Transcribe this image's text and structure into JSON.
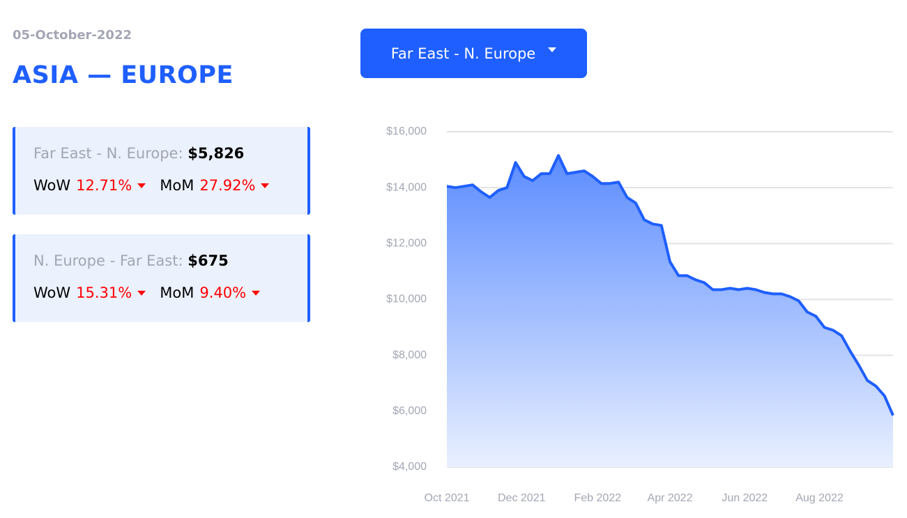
{
  "header": {
    "date": "05-October-2022",
    "title": "ASIA — EUROPE"
  },
  "dropdown": {
    "label": "Far East - N. Europe"
  },
  "cards": [
    {
      "route": "Far East - N. Europe:",
      "price": "$5,826",
      "metrics": [
        {
          "name": "WoW",
          "change": "12.71%"
        },
        {
          "name": "MoM",
          "change": "27.92%"
        }
      ]
    },
    {
      "route": "N. Europe - Far East:",
      "price": "$675",
      "metrics": [
        {
          "name": "WoW",
          "change": "15.31%"
        },
        {
          "name": "MoM",
          "change": "9.40%"
        }
      ]
    }
  ],
  "chart_data": {
    "type": "line",
    "color": "#1f5fff",
    "grid": true,
    "x": [
      "2021-10-01",
      "2021-10-08",
      "2021-10-15",
      "2021-10-22",
      "2021-10-29",
      "2021-11-05",
      "2021-11-12",
      "2021-11-19",
      "2021-11-26",
      "2021-12-03",
      "2021-12-10",
      "2021-12-17",
      "2021-12-24",
      "2021-12-31",
      "2022-01-07",
      "2022-01-14",
      "2022-01-21",
      "2022-01-28",
      "2022-02-04",
      "2022-02-11",
      "2022-02-18",
      "2022-02-25",
      "2022-03-04",
      "2022-03-11",
      "2022-03-18",
      "2022-03-25",
      "2022-04-01",
      "2022-04-08",
      "2022-04-15",
      "2022-04-22",
      "2022-04-29",
      "2022-05-06",
      "2022-05-13",
      "2022-05-20",
      "2022-05-27",
      "2022-06-03",
      "2022-06-10",
      "2022-06-17",
      "2022-06-24",
      "2022-07-01",
      "2022-07-08",
      "2022-07-15",
      "2022-07-22",
      "2022-07-29",
      "2022-08-05",
      "2022-08-12",
      "2022-08-19",
      "2022-08-26",
      "2022-09-02",
      "2022-09-09",
      "2022-09-16",
      "2022-09-23",
      "2022-09-30"
    ],
    "values": [
      14050,
      14000,
      14050,
      14100,
      13850,
      13650,
      13900,
      14000,
      14900,
      14400,
      14250,
      14500,
      14500,
      15150,
      14500,
      14550,
      14600,
      14400,
      14150,
      14150,
      14200,
      13650,
      13450,
      12850,
      12700,
      12650,
      11350,
      10850,
      10850,
      10700,
      10600,
      10350,
      10350,
      10400,
      10350,
      10400,
      10350,
      10250,
      10200,
      10200,
      10100,
      9950,
      9550,
      9400,
      9000,
      8900,
      8700,
      8150,
      7650,
      7100,
      6900,
      6550,
      5850
    ],
    "xlim": [
      "2021-10-01",
      "2022-09-30"
    ],
    "xticks": [
      {
        "value": "2021-10-01",
        "label": "Oct 2021"
      },
      {
        "value": "2021-12-01",
        "label": "Dec 2021"
      },
      {
        "value": "2022-02-01",
        "label": "Feb 2022"
      },
      {
        "value": "2022-04-01",
        "label": "Apr 2022"
      },
      {
        "value": "2022-06-01",
        "label": "Jun 2022"
      },
      {
        "value": "2022-08-01",
        "label": "Aug 2022"
      }
    ],
    "ylim": [
      4000,
      16000
    ],
    "yticks": [
      {
        "value": 4000,
        "label": "$4,000"
      },
      {
        "value": 6000,
        "label": "$6,000"
      },
      {
        "value": 8000,
        "label": "$8,000"
      },
      {
        "value": 10000,
        "label": "$10,000"
      },
      {
        "value": 12000,
        "label": "$12,000"
      },
      {
        "value": 14000,
        "label": "$14,000"
      },
      {
        "value": 16000,
        "label": "$16,000"
      }
    ]
  }
}
